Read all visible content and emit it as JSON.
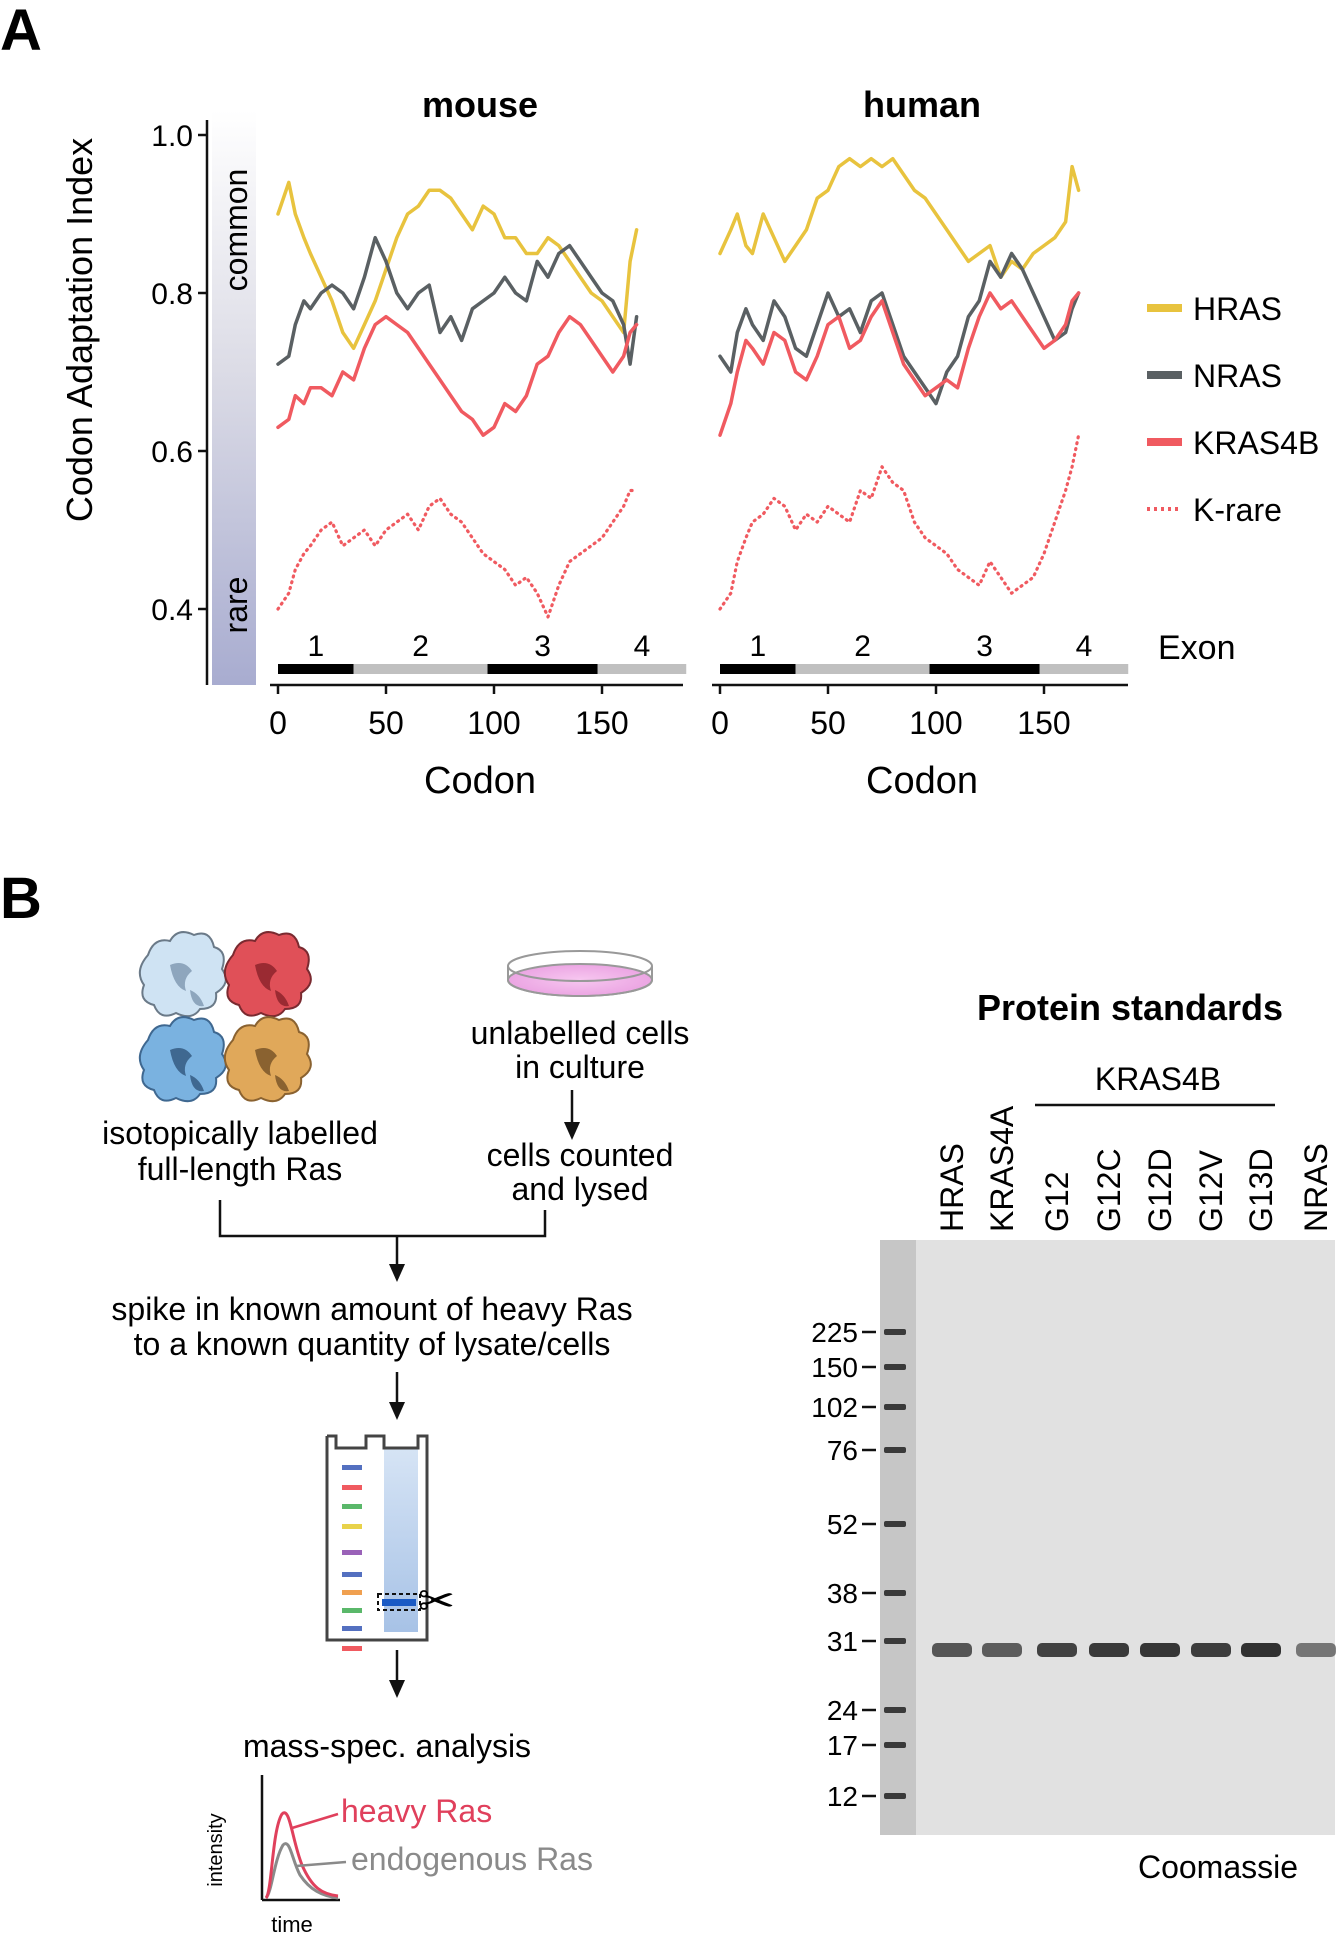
{
  "panel_a": {
    "label": "A",
    "ylabel": "Codon Adaptation Index",
    "scale_common": "common",
    "scale_rare": "rare",
    "exon_title": "Exon",
    "xlabel": "Codon",
    "charts": [
      {
        "title": "mouse"
      },
      {
        "title": "human"
      }
    ]
  },
  "chart_data": [
    {
      "type": "line",
      "title": "mouse",
      "xlabel": "Codon",
      "ylabel": "Codon Adaptation Index",
      "xticks": [
        "0",
        "50",
        "100",
        "150"
      ],
      "yticks": [
        "0.4",
        "0.6",
        "0.8",
        "1.0"
      ],
      "xlim": [
        0,
        189
      ],
      "ylim": [
        0.35,
        1.0
      ],
      "exons": [
        {
          "label": "1",
          "start": 0,
          "end": 35,
          "color": "#000000"
        },
        {
          "label": "2",
          "start": 35,
          "end": 97,
          "color": "#c0c0c0"
        },
        {
          "label": "3",
          "start": 97,
          "end": 148,
          "color": "#000000"
        },
        {
          "label": "4",
          "start": 148,
          "end": 189,
          "color": "#c0c0c0"
        }
      ],
      "series": [
        {
          "name": "HRAS",
          "color": "#e8c33e",
          "style": "solid",
          "x": [
            0,
            5,
            8,
            12,
            15,
            20,
            25,
            30,
            35,
            40,
            45,
            50,
            55,
            60,
            65,
            70,
            75,
            80,
            85,
            90,
            95,
            100,
            105,
            110,
            115,
            120,
            125,
            130,
            135,
            140,
            145,
            150,
            155,
            160,
            163,
            166
          ],
          "y": [
            0.9,
            0.94,
            0.9,
            0.87,
            0.85,
            0.82,
            0.79,
            0.75,
            0.73,
            0.76,
            0.79,
            0.83,
            0.87,
            0.9,
            0.91,
            0.93,
            0.93,
            0.92,
            0.9,
            0.88,
            0.91,
            0.9,
            0.87,
            0.87,
            0.85,
            0.85,
            0.87,
            0.86,
            0.84,
            0.82,
            0.8,
            0.79,
            0.77,
            0.75,
            0.84,
            0.88
          ]
        },
        {
          "name": "NRAS",
          "color": "#5a6063",
          "style": "solid",
          "x": [
            0,
            5,
            8,
            12,
            15,
            20,
            25,
            30,
            35,
            40,
            45,
            50,
            55,
            60,
            65,
            70,
            75,
            80,
            85,
            90,
            95,
            100,
            105,
            110,
            115,
            120,
            125,
            130,
            135,
            140,
            145,
            150,
            155,
            160,
            163,
            166
          ],
          "y": [
            0.71,
            0.72,
            0.76,
            0.79,
            0.78,
            0.8,
            0.81,
            0.8,
            0.78,
            0.82,
            0.87,
            0.84,
            0.8,
            0.78,
            0.8,
            0.81,
            0.75,
            0.77,
            0.74,
            0.78,
            0.79,
            0.8,
            0.82,
            0.8,
            0.79,
            0.84,
            0.82,
            0.85,
            0.86,
            0.84,
            0.82,
            0.8,
            0.79,
            0.76,
            0.71,
            0.77
          ]
        },
        {
          "name": "KRAS4B",
          "color": "#f05a60",
          "style": "solid",
          "x": [
            0,
            5,
            8,
            12,
            15,
            20,
            25,
            30,
            35,
            40,
            45,
            50,
            55,
            60,
            65,
            70,
            75,
            80,
            85,
            90,
            95,
            100,
            105,
            110,
            115,
            120,
            125,
            130,
            135,
            140,
            145,
            150,
            155,
            160,
            163,
            166
          ],
          "y": [
            0.63,
            0.64,
            0.67,
            0.66,
            0.68,
            0.68,
            0.67,
            0.7,
            0.69,
            0.73,
            0.76,
            0.77,
            0.76,
            0.75,
            0.73,
            0.71,
            0.69,
            0.67,
            0.65,
            0.64,
            0.62,
            0.63,
            0.66,
            0.65,
            0.67,
            0.71,
            0.72,
            0.75,
            0.77,
            0.76,
            0.74,
            0.72,
            0.7,
            0.72,
            0.75,
            0.76
          ]
        },
        {
          "name": "K-rare",
          "color": "#f05a60",
          "style": "dotted",
          "x": [
            0,
            5,
            8,
            12,
            15,
            20,
            25,
            30,
            35,
            40,
            45,
            50,
            55,
            60,
            65,
            70,
            75,
            80,
            85,
            90,
            95,
            100,
            105,
            110,
            115,
            120,
            125,
            130,
            135,
            140,
            145,
            150,
            155,
            160,
            163,
            166
          ],
          "y": [
            0.4,
            0.42,
            0.45,
            0.47,
            0.48,
            0.5,
            0.51,
            0.48,
            0.49,
            0.5,
            0.48,
            0.5,
            0.51,
            0.52,
            0.5,
            0.53,
            0.54,
            0.52,
            0.51,
            0.49,
            0.47,
            0.46,
            0.45,
            0.43,
            0.44,
            0.42,
            0.39,
            0.43,
            0.46,
            0.47,
            0.48,
            0.49,
            0.51,
            0.53,
            0.55,
            0.55
          ]
        }
      ]
    },
    {
      "type": "line",
      "title": "human",
      "xlabel": "Codon",
      "ylabel": "Codon Adaptation Index",
      "xticks": [
        "0",
        "50",
        "100",
        "150"
      ],
      "yticks": [
        "0.4",
        "0.6",
        "0.8",
        "1.0"
      ],
      "xlim": [
        0,
        189
      ],
      "ylim": [
        0.35,
        1.0
      ],
      "exons": [
        {
          "label": "1",
          "start": 0,
          "end": 35,
          "color": "#000000"
        },
        {
          "label": "2",
          "start": 35,
          "end": 97,
          "color": "#c0c0c0"
        },
        {
          "label": "3",
          "start": 97,
          "end": 148,
          "color": "#000000"
        },
        {
          "label": "4",
          "start": 148,
          "end": 189,
          "color": "#c0c0c0"
        }
      ],
      "series": [
        {
          "name": "HRAS",
          "color": "#e8c33e",
          "style": "solid",
          "x": [
            0,
            5,
            8,
            12,
            15,
            20,
            25,
            30,
            35,
            40,
            45,
            50,
            55,
            60,
            65,
            70,
            75,
            80,
            85,
            90,
            95,
            100,
            105,
            110,
            115,
            120,
            125,
            130,
            135,
            140,
            145,
            150,
            155,
            160,
            163,
            166
          ],
          "y": [
            0.85,
            0.88,
            0.9,
            0.86,
            0.85,
            0.9,
            0.87,
            0.84,
            0.86,
            0.88,
            0.92,
            0.93,
            0.96,
            0.97,
            0.96,
            0.97,
            0.96,
            0.97,
            0.95,
            0.93,
            0.92,
            0.9,
            0.88,
            0.86,
            0.84,
            0.85,
            0.86,
            0.82,
            0.84,
            0.83,
            0.85,
            0.86,
            0.87,
            0.89,
            0.96,
            0.93
          ]
        },
        {
          "name": "NRAS",
          "color": "#5a6063",
          "style": "solid",
          "x": [
            0,
            5,
            8,
            12,
            15,
            20,
            25,
            30,
            35,
            40,
            45,
            50,
            55,
            60,
            65,
            70,
            75,
            80,
            85,
            90,
            95,
            100,
            105,
            110,
            115,
            120,
            125,
            130,
            135,
            140,
            145,
            150,
            155,
            160,
            163,
            166
          ],
          "y": [
            0.72,
            0.7,
            0.75,
            0.78,
            0.76,
            0.74,
            0.79,
            0.77,
            0.73,
            0.72,
            0.76,
            0.8,
            0.77,
            0.78,
            0.75,
            0.79,
            0.8,
            0.76,
            0.72,
            0.7,
            0.68,
            0.66,
            0.7,
            0.72,
            0.77,
            0.79,
            0.84,
            0.82,
            0.85,
            0.83,
            0.8,
            0.77,
            0.74,
            0.75,
            0.78,
            0.8
          ]
        },
        {
          "name": "KRAS4B",
          "color": "#f05a60",
          "style": "solid",
          "x": [
            0,
            5,
            8,
            12,
            15,
            20,
            25,
            30,
            35,
            40,
            45,
            50,
            55,
            60,
            65,
            70,
            75,
            80,
            85,
            90,
            95,
            100,
            105,
            110,
            115,
            120,
            125,
            130,
            135,
            140,
            145,
            150,
            155,
            160,
            163,
            166
          ],
          "y": [
            0.62,
            0.66,
            0.7,
            0.74,
            0.73,
            0.71,
            0.75,
            0.74,
            0.7,
            0.69,
            0.72,
            0.76,
            0.77,
            0.73,
            0.74,
            0.77,
            0.79,
            0.75,
            0.71,
            0.69,
            0.67,
            0.68,
            0.69,
            0.68,
            0.73,
            0.77,
            0.8,
            0.78,
            0.79,
            0.77,
            0.75,
            0.73,
            0.74,
            0.76,
            0.79,
            0.8
          ]
        },
        {
          "name": "K-rare",
          "color": "#f05a60",
          "style": "dotted",
          "x": [
            0,
            5,
            8,
            12,
            15,
            20,
            25,
            30,
            35,
            40,
            45,
            50,
            55,
            60,
            65,
            70,
            75,
            80,
            85,
            90,
            95,
            100,
            105,
            110,
            115,
            120,
            125,
            130,
            135,
            140,
            145,
            150,
            155,
            160,
            163,
            166
          ],
          "y": [
            0.4,
            0.42,
            0.46,
            0.49,
            0.51,
            0.52,
            0.54,
            0.53,
            0.5,
            0.52,
            0.51,
            0.53,
            0.52,
            0.51,
            0.55,
            0.54,
            0.58,
            0.56,
            0.55,
            0.51,
            0.49,
            0.48,
            0.47,
            0.45,
            0.44,
            0.43,
            0.46,
            0.44,
            0.42,
            0.43,
            0.44,
            0.47,
            0.51,
            0.55,
            0.58,
            0.62
          ]
        }
      ]
    }
  ],
  "legend": [
    {
      "label": "HRAS",
      "color": "#e8c33e",
      "style": "solid"
    },
    {
      "label": "NRAS",
      "color": "#5a6063",
      "style": "solid"
    },
    {
      "label": "KRAS4B",
      "color": "#f05a60",
      "style": "solid"
    },
    {
      "label": "K-rare",
      "color": "#f05a60",
      "style": "dotted"
    }
  ],
  "panel_b": {
    "label": "B",
    "workflow": {
      "proteins_caption_1": "isotopically labelled",
      "proteins_caption_2": "full-length Ras",
      "proteins_colors": [
        "#cfe3f3",
        "#e05058",
        "#7ab2e0",
        "#e0a85a"
      ],
      "cells_caption_1": "unlabelled cells",
      "cells_caption_2": "in culture",
      "counted_1": "cells counted",
      "counted_2": "and lysed",
      "spike_1": "spike in known amount of heavy Ras",
      "spike_2": "to a known quantity of lysate/cells",
      "marker_band_colors": [
        "#5470c0",
        "#f05a60",
        "#5ab86a",
        "#e8d24a",
        "#9a62b8",
        "#5470c0",
        "#f0a050",
        "#5ab86a",
        "#5470c0",
        "#f05a60"
      ],
      "scissors_glyph": "✂",
      "ms_caption": "mass-spec. analysis",
      "intensity_label": "intensity",
      "time_label": "time",
      "heavy_label": "heavy Ras",
      "endogenous_label": "endogenous Ras",
      "heavy_color": "#e0405c",
      "endogenous_color": "#8a8a8a"
    },
    "gel": {
      "title": "Protein standards",
      "group_label": "KRAS4B",
      "lanes": [
        "HRAS",
        "KRAS4A",
        "G12",
        "G12C",
        "G12D",
        "G12V",
        "G13D",
        "NRAS"
      ],
      "markers": [
        "225",
        "150",
        "102",
        "76",
        "52",
        "38",
        "31",
        "24",
        "17",
        "12"
      ],
      "stain": "Coomassie"
    }
  }
}
